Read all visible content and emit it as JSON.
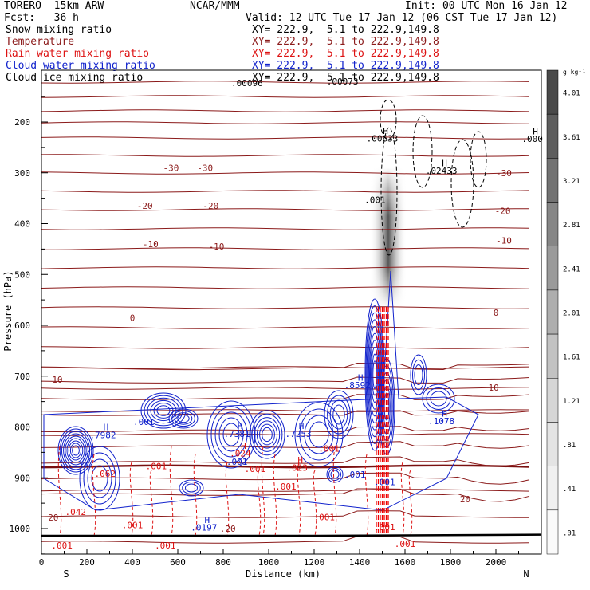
{
  "header": {
    "model": "TORERO  15km ARW",
    "org": "NCAR/MMM",
    "init": "Init: 00 UTC Mon 16 Jan 12",
    "fcst": "Fcst:   36 h",
    "valid": "Valid: 12 UTC Tue 17 Jan 12 (06 CST Tue 17 Jan 12)"
  },
  "fields": [
    {
      "name": "Snow mixing ratio",
      "color": "#000000",
      "xy": "XY= 222.9,  5.1 to 222.9,149.8"
    },
    {
      "name": "Temperature",
      "color": "#8b1a1a",
      "xy": "XY= 222.9,  5.1 to 222.9,149.8"
    },
    {
      "name": "Rain water mixing ratio",
      "color": "#dd1111",
      "xy": "XY= 222.9,  5.1 to 222.9,149.8"
    },
    {
      "name": "Cloud water mixing ratio",
      "color": "#1122cc",
      "xy": "XY= 222.9,  5.1 to 222.9,149.8"
    },
    {
      "name": "Cloud ice mixing ratio",
      "color": "#000000",
      "xy": "XY= 222.9,  5.1 to 222.9,149.8"
    }
  ],
  "chart_data": {
    "type": "contour",
    "xlabel": "Distance (km)",
    "ylabel": "Pressure (hPa)",
    "xlim": [
      0,
      2200
    ],
    "ylim": [
      1050,
      100
    ],
    "xticks": [
      0,
      200,
      400,
      600,
      800,
      1000,
      1200,
      1400,
      1600,
      1800,
      2000
    ],
    "yticks": [
      200,
      300,
      400,
      500,
      600,
      700,
      800,
      900,
      1000
    ],
    "end_labels": {
      "left": "S",
      "right": "N"
    },
    "colorbar": {
      "unit": "g kg⁻¹",
      "ticks": [
        "4.01",
        "3.61",
        "3.21",
        "2.81",
        "2.41",
        "2.01",
        "1.61",
        "1.21",
        ".81",
        ".41",
        ".01"
      ],
      "colors": [
        "#4a4a4a",
        "#5e5e5e",
        "#727272",
        "#868686",
        "#9a9a9a",
        "#aeaeae",
        "#c2c2c2",
        "#d6d6d6",
        "#e4e4e4",
        "#f0f0f0",
        "#fafafa"
      ]
    },
    "temperature_labels": [
      {
        "text": "-30",
        "x": 570,
        "p": 290
      },
      {
        "text": "-30",
        "x": 720,
        "p": 290
      },
      {
        "text": "-30",
        "x": 2035,
        "p": 300
      },
      {
        "text": "-20",
        "x": 455,
        "p": 365
      },
      {
        "text": "-20",
        "x": 745,
        "p": 365
      },
      {
        "text": "-20",
        "x": 2030,
        "p": 375
      },
      {
        "text": "-10",
        "x": 480,
        "p": 440
      },
      {
        "text": "-10",
        "x": 770,
        "p": 445
      },
      {
        "text": "-10",
        "x": 2035,
        "p": 433
      },
      {
        "text": "0",
        "x": 400,
        "p": 585
      },
      {
        "text": "0",
        "x": 2000,
        "p": 575
      },
      {
        "text": "10",
        "x": 70,
        "p": 707
      },
      {
        "text": "10",
        "x": 1990,
        "p": 722
      },
      {
        "text": "20",
        "x": 1865,
        "p": 942
      },
      {
        "text": "20",
        "x": 52,
        "p": 978
      }
    ],
    "highs": [
      {
        "text": ".00633",
        "x": 1500,
        "p": 232,
        "mark_p": 217,
        "color": "#000000"
      },
      {
        "text": ".02433",
        "x": 1760,
        "p": 296,
        "mark_p": 281,
        "color": "#000000"
      },
      {
        "text": ".000",
        "x": 2160,
        "p": 233,
        "mark_p": 218,
        "color": "#000000"
      },
      {
        "text": ".001",
        "x": 1468,
        "p": 353,
        "color": "#000000"
      },
      {
        "text": ".00096",
        "x": 905,
        "p": 123,
        "color": "#000000"
      },
      {
        "text": ".00073",
        "x": 1325,
        "p": 120,
        "color": "#000000"
      },
      {
        "text": ".7982",
        "x": 270,
        "p": 816,
        "mark_p": 800,
        "color": "#1122cc"
      },
      {
        "text": ".7381",
        "x": 860,
        "p": 813,
        "mark_p": 798,
        "color": "#1122cc"
      },
      {
        "text": ".7253",
        "x": 1130,
        "p": 813,
        "mark_p": 798,
        "color": "#1122cc"
      },
      {
        "text": ".8592",
        "x": 1390,
        "p": 718,
        "mark_p": 703,
        "color": "#1122cc"
      },
      {
        "text": ".1078",
        "x": 1760,
        "p": 788,
        "mark_p": 773,
        "color": "#1122cc"
      },
      {
        "text": ".0197",
        "x": 715,
        "p": 998,
        "mark_p": 983,
        "color": "#1122cc"
      },
      {
        "text": ".001",
        "x": 450,
        "p": 790,
        "color": "#1122cc"
      },
      {
        "text": ".001",
        "x": 860,
        "p": 868,
        "color": "#1122cc"
      },
      {
        "text": ".001",
        "x": 1380,
        "p": 893,
        "color": "#1122cc"
      },
      {
        "text": ".001",
        "x": 1510,
        "p": 908,
        "color": "#1122cc"
      },
      {
        "text": ".024",
        "x": 875,
        "p": 852,
        "mark_p": 837,
        "color": "#dd1111"
      },
      {
        "text": ".023",
        "x": 1125,
        "p": 880,
        "mark_p": 865,
        "color": "#dd1111"
      },
      {
        "text": ".062",
        "x": 280,
        "p": 892,
        "color": "#dd1111"
      },
      {
        "text": ".042",
        "x": 150,
        "p": 967,
        "color": "#dd1111"
      },
      {
        "text": ".001",
        "x": 1265,
        "p": 842,
        "color": "#dd1111"
      },
      {
        "text": ".001",
        "x": 505,
        "p": 877,
        "color": "#dd1111"
      },
      {
        "text": ".001",
        "x": 940,
        "p": 882,
        "color": "#dd1111"
      },
      {
        "text": ".001",
        "x": 1075,
        "p": 917,
        "color": "#dd1111"
      },
      {
        "text": ".001",
        "x": 400,
        "p": 993,
        "color": "#dd1111"
      },
      {
        "text": ".001",
        "x": 1245,
        "p": 977,
        "color": "#dd1111"
      },
      {
        "text": ".001",
        "x": 1510,
        "p": 997,
        "color": "#dd1111"
      },
      {
        "text": ".001",
        "x": 90,
        "p": 1033,
        "color": "#dd1111"
      },
      {
        "text": ".001",
        "x": 545,
        "p": 1033,
        "color": "#dd1111"
      },
      {
        "text": ".001",
        "x": 1600,
        "p": 1030,
        "color": "#dd1111"
      },
      {
        "text": ".20",
        "x": 820,
        "p": 1000,
        "color": "#8b1a1a"
      }
    ]
  }
}
